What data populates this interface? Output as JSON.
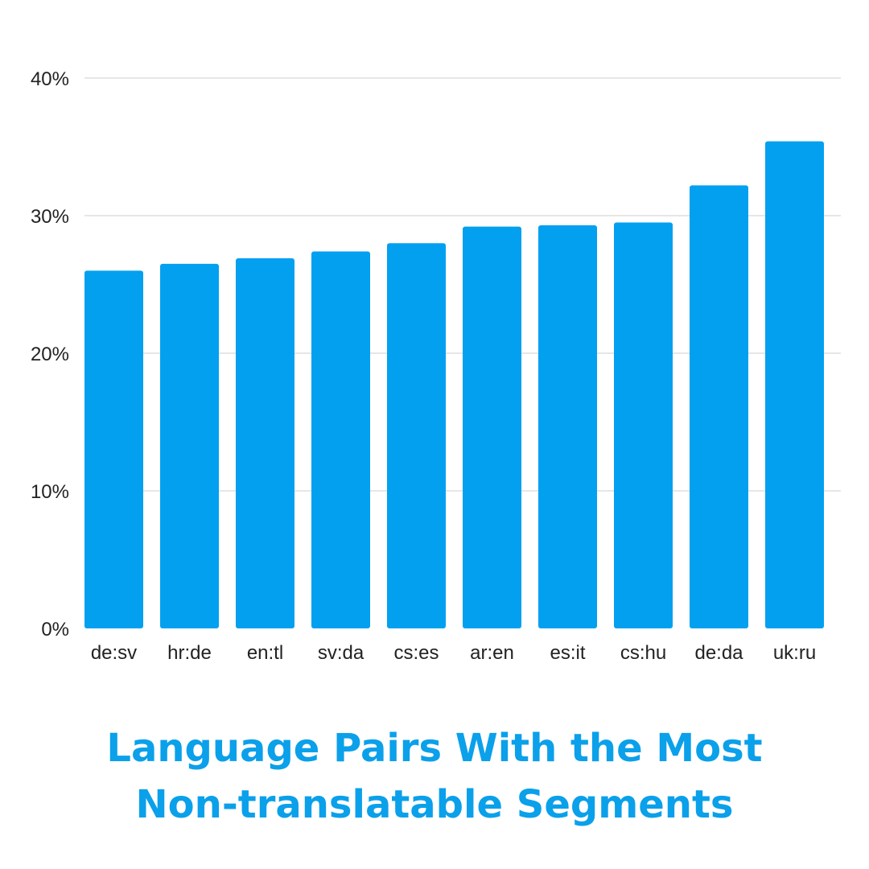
{
  "chart_data": {
    "type": "bar",
    "title_lines": [
      "Language Pairs With the Most",
      "Non-translatable Segments"
    ],
    "categories": [
      "de:sv",
      "hr:de",
      "en:tl",
      "sv:da",
      "cs:es",
      "ar:en",
      "es:it",
      "cs:hu",
      "de:da",
      "uk:ru"
    ],
    "values": [
      26.0,
      26.5,
      26.9,
      27.4,
      28.0,
      29.2,
      29.3,
      29.5,
      32.2,
      35.4
    ],
    "ylim": [
      0,
      40
    ],
    "yticks": [
      0,
      10,
      20,
      30,
      40
    ],
    "ytick_labels": [
      "0%",
      "10%",
      "20%",
      "30%",
      "40%"
    ],
    "xlabel": "",
    "ylabel": "",
    "grid": true,
    "legend": "none",
    "bar_color": "#03a0f0",
    "title_color": "#0ba0ea"
  }
}
